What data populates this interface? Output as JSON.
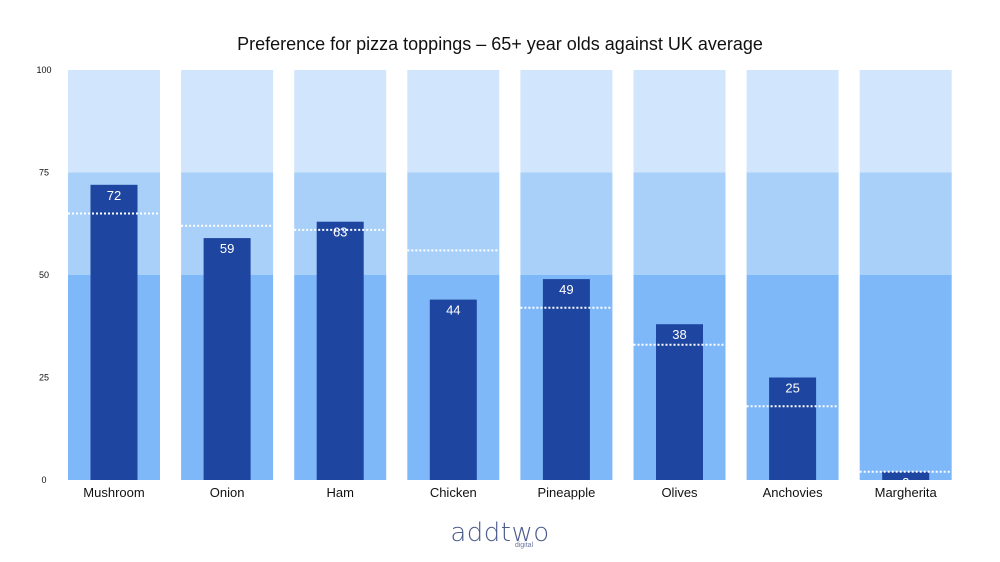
{
  "colors": {
    "band_low": "#7fb8f8",
    "band_mid": "#a9d0f9",
    "band_high": "#d1e6fc",
    "bar": "#1e45a0",
    "avg_line": "#ffffff",
    "text": "#111111"
  },
  "chart_data": {
    "type": "bar",
    "title": "Preference for pizza toppings – 65+ year olds against UK average",
    "xlabel": "",
    "ylabel": "",
    "ylim": [
      0,
      100
    ],
    "yticks": [
      "0",
      "25",
      "50",
      "75",
      "100"
    ],
    "ytick_values": [
      0,
      25,
      50,
      75,
      100
    ],
    "categories": [
      "Mushroom",
      "Onion",
      "Ham",
      "Chicken",
      "Pineapple",
      "Olives",
      "Anchovies",
      "Margherita"
    ],
    "series": [
      {
        "name": "65+ year olds",
        "values": [
          72,
          59,
          63,
          44,
          49,
          38,
          25,
          2
        ]
      },
      {
        "name": "UK average",
        "values": [
          65,
          62,
          61,
          56,
          42,
          33,
          18,
          2
        ]
      }
    ],
    "data_labels": [
      "72",
      "59",
      "63",
      "44",
      "49",
      "38",
      "25",
      "2"
    ],
    "band_breaks": [
      0,
      50,
      75,
      100
    ]
  },
  "logo": {
    "main": "addtwo",
    "sub": "digital"
  }
}
